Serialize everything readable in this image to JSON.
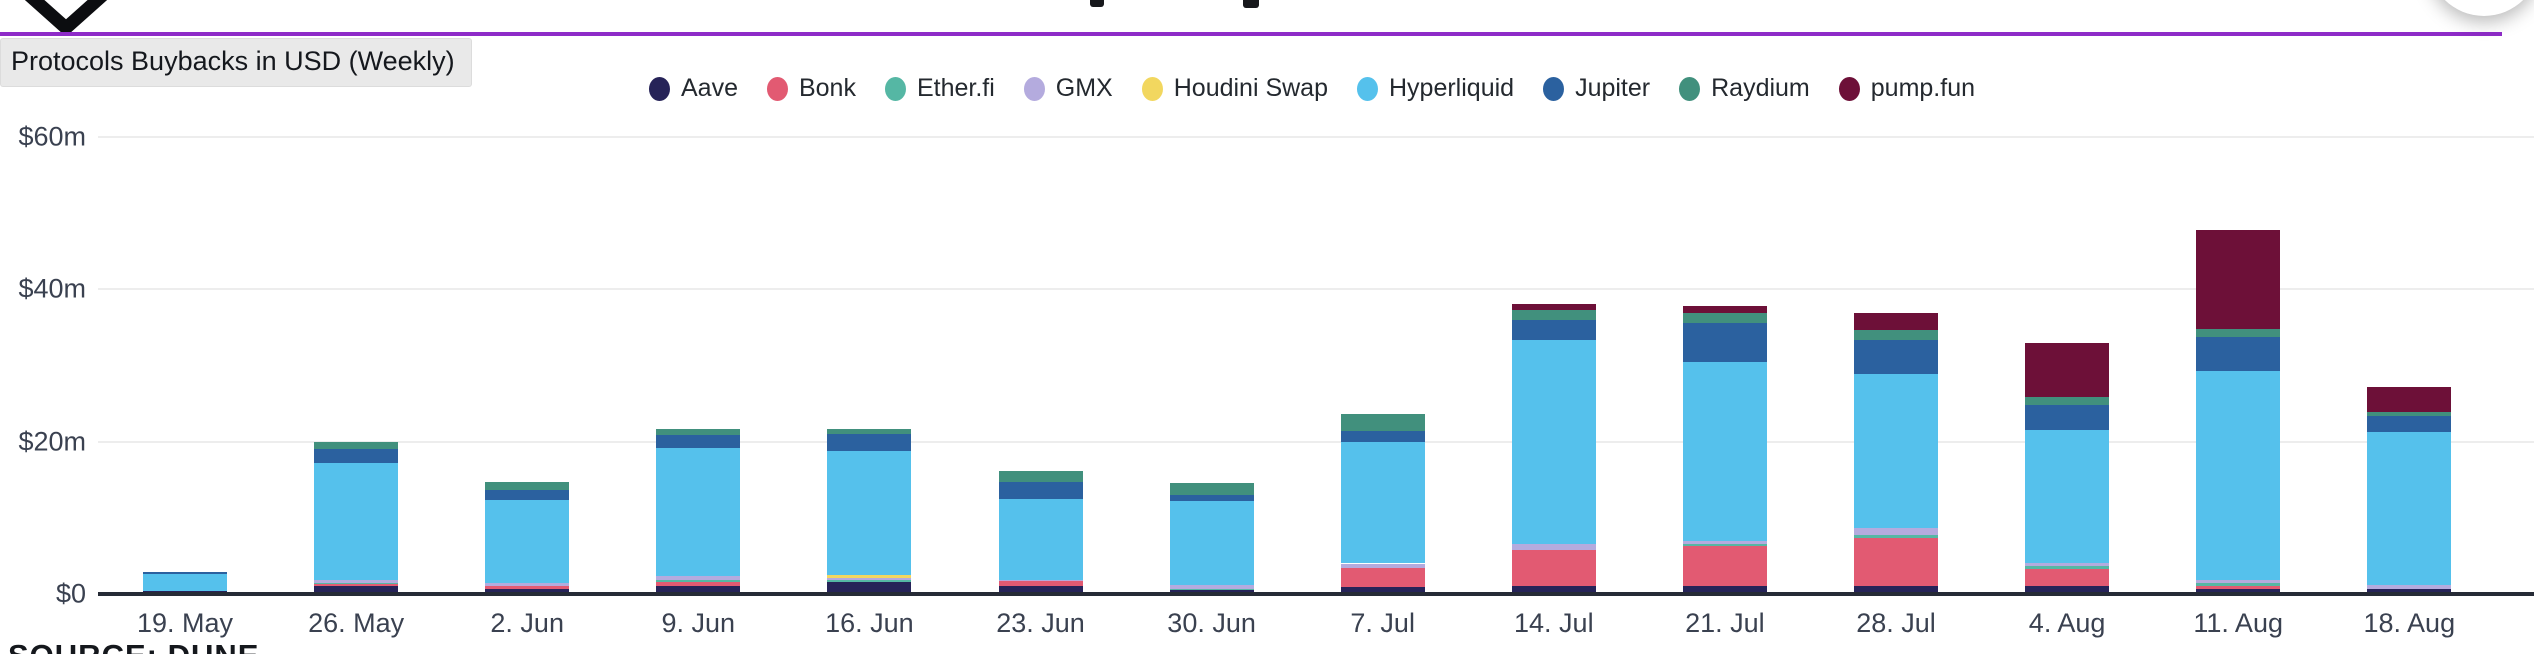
{
  "header": {
    "tooltip_label": "Protocols Buybacks in USD (Weekly)",
    "source_label": "SOURCE: DUNE",
    "accent_color": "#8e2bc8"
  },
  "legend": {
    "items": [
      {
        "label": "Aave",
        "color": "#262358"
      },
      {
        "label": "Bonk",
        "color": "#e25a72"
      },
      {
        "label": "Ether.fi",
        "color": "#55b7a4"
      },
      {
        "label": "GMX",
        "color": "#b4abde"
      },
      {
        "label": "Houdini Swap",
        "color": "#f2d75f"
      },
      {
        "label": "Hyperliquid",
        "color": "#55c1ec"
      },
      {
        "label": "Jupiter",
        "color": "#2b619f"
      },
      {
        "label": "Raydium",
        "color": "#41907d"
      },
      {
        "label": "pump.fun",
        "color": "#6d1038"
      }
    ]
  },
  "chart_data": {
    "type": "bar",
    "stacked": true,
    "title": "Protocols Buybacks in USD (Weekly)",
    "unit": "USD millions",
    "categories": [
      "19. May",
      "26. May",
      "2. Jun",
      "9. Jun",
      "16. Jun",
      "23. Jun",
      "30. Jun",
      "7. Jul",
      "14. Jul",
      "21. Jul",
      "28. Jul",
      "4. Aug",
      "11. Aug",
      "18. Aug"
    ],
    "series": [
      {
        "name": "Aave",
        "color": "#262358",
        "values": [
          0.4,
          1.0,
          0.6,
          1.1,
          1.6,
          1.1,
          0.5,
          0.9,
          1.1,
          1.0,
          1.1,
          1.0,
          0.7,
          0.6
        ]
      },
      {
        "name": "Bonk",
        "color": "#e25a72",
        "values": [
          0,
          0.3,
          0.4,
          0.5,
          0,
          0.6,
          0,
          2.5,
          4.7,
          5.3,
          6.3,
          2.3,
          0.4,
          0
        ]
      },
      {
        "name": "Ether.fi",
        "color": "#55b7a4",
        "values": [
          0,
          0.1,
          0,
          0.2,
          0.3,
          0,
          0.2,
          0,
          0,
          0.2,
          0.4,
          0.4,
          0.3,
          0
        ]
      },
      {
        "name": "GMX",
        "color": "#b4abde",
        "values": [
          0,
          0.4,
          0.5,
          0.5,
          0.2,
          0.1,
          0.5,
          0.6,
          0.8,
          0.5,
          0.9,
          0.4,
          0.5,
          0.6
        ]
      },
      {
        "name": "Houdini Swap",
        "color": "#f2d75f",
        "values": [
          0,
          0,
          0,
          0,
          0.4,
          0,
          0,
          0,
          0,
          0,
          0,
          0,
          0,
          0
        ]
      },
      {
        "name": "Hyperliquid",
        "color": "#55c1ec",
        "values": [
          2.2,
          15.4,
          10.8,
          16.8,
          16.3,
          10.6,
          11.0,
          15.9,
          26.7,
          23.4,
          20.2,
          17.4,
          27.3,
          20.0
        ]
      },
      {
        "name": "Jupiter",
        "color": "#2b619f",
        "values": [
          0.3,
          1.8,
          1.4,
          1.8,
          2.2,
          2.3,
          0.8,
          1.5,
          2.6,
          5.2,
          4.4,
          3.3,
          4.5,
          2.2
        ]
      },
      {
        "name": "Raydium",
        "color": "#41907d",
        "values": [
          0,
          1.0,
          1.0,
          0.7,
          0.7,
          1.4,
          1.5,
          2.2,
          1.3,
          1.3,
          1.3,
          1.1,
          1.0,
          0.5
        ]
      },
      {
        "name": "pump.fun",
        "color": "#6d1038",
        "values": [
          0,
          0,
          0,
          0,
          0,
          0,
          0,
          0,
          0.8,
          0.9,
          2.3,
          7.0,
          13.0,
          3.3
        ]
      }
    ],
    "y_ticks": [
      {
        "label": "$0",
        "value": 0
      },
      {
        "label": "$20m",
        "value": 20
      },
      {
        "label": "$40m",
        "value": 40
      },
      {
        "label": "$60m",
        "value": 60
      }
    ],
    "ylim": [
      0,
      60
    ],
    "grid": true,
    "legend_position": "top"
  }
}
